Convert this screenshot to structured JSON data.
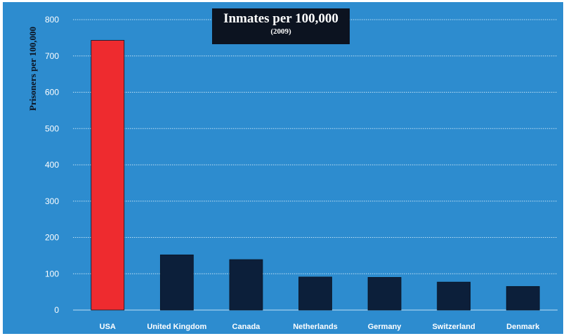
{
  "chart_data": {
    "type": "bar",
    "title": "Inmates per 100,000",
    "subtitle": "(2009)",
    "xlabel": "",
    "ylabel": "Prisoners per 100,000",
    "ylim": [
      0,
      800
    ],
    "yticks": [
      0,
      100,
      200,
      300,
      400,
      500,
      600,
      700,
      800
    ],
    "grid": true,
    "categories": [
      "USA",
      "United Kingdom",
      "Canada",
      "Netherlands",
      "Germany",
      "Switzerland",
      "Denmark"
    ],
    "values": [
      743,
      152,
      139,
      91,
      90,
      77,
      65
    ],
    "colors": [
      "#ee2b2f",
      "#0c1f3a",
      "#0c1f3a",
      "#0c1f3a",
      "#0c1f3a",
      "#0c1f3a",
      "#0c1f3a"
    ],
    "background_color": "#2d8ccf"
  }
}
